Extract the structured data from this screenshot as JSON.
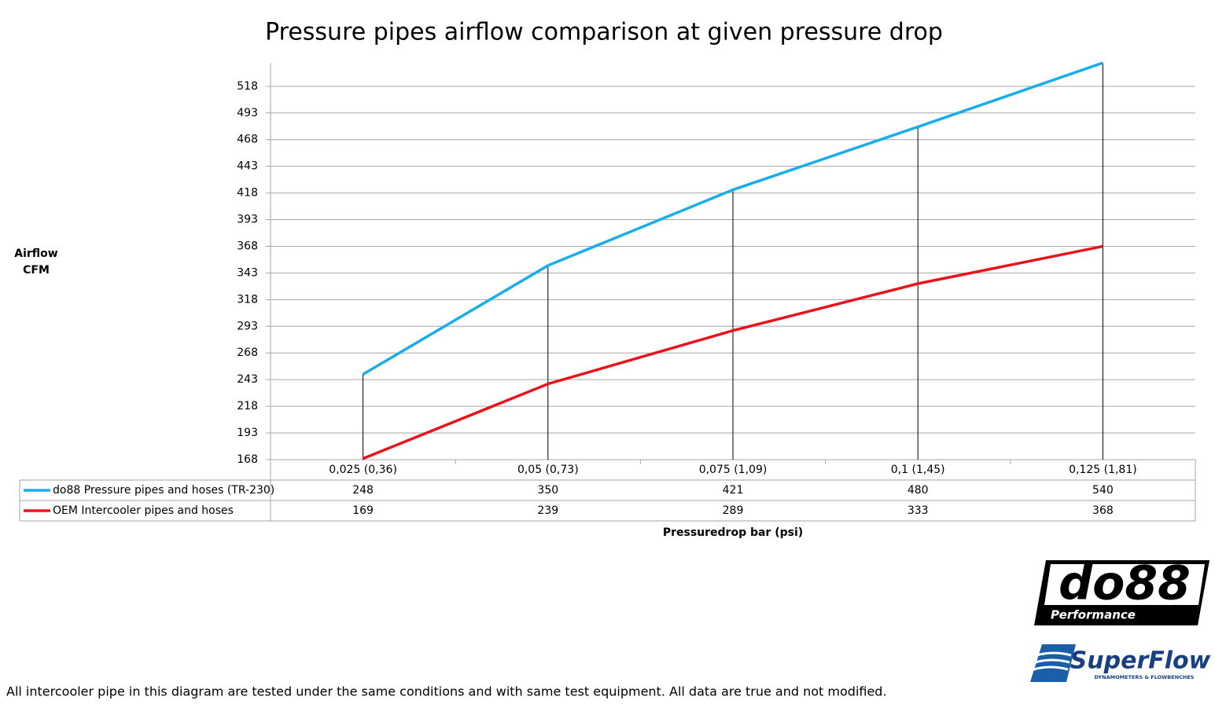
{
  "chart_data": {
    "type": "line",
    "title": "Pressure pipes airflow comparison at given pressure drop",
    "y_label": [
      "Airflow",
      "CFM"
    ],
    "x_label": "Pressuredrop bar (psi)",
    "categories": [
      "0,025 (0,36)",
      "0,05 (0,73)",
      "0,075 (1,09)",
      "0,1 (1,45)",
      "0,125 (1,81)"
    ],
    "series": [
      {
        "name": "do88 Pressure pipes and hoses (TR-230)",
        "color": "#1aaee8",
        "values": [
          248,
          350,
          421,
          480,
          540
        ]
      },
      {
        "name": "OEM Intercooler pipes and hoses",
        "color": "#e8141b",
        "values": [
          169,
          239,
          289,
          333,
          368
        ]
      }
    ],
    "ylim": [
      168,
      540
    ],
    "yticks": [
      168,
      193,
      218,
      243,
      268,
      293,
      318,
      343,
      368,
      393,
      418,
      443,
      468,
      493,
      518
    ],
    "grid": true,
    "drop_lines": true
  },
  "footnote": "All intercooler pipe in this diagram are tested under the same conditions and with same test equipment. All data are true and not modified.",
  "logos": {
    "do88": "do88",
    "do88_sub": "Performance",
    "superflow": "SuperFlow",
    "superflow_sub": "DYNAMOMETERS & FLOWBENCHES"
  }
}
